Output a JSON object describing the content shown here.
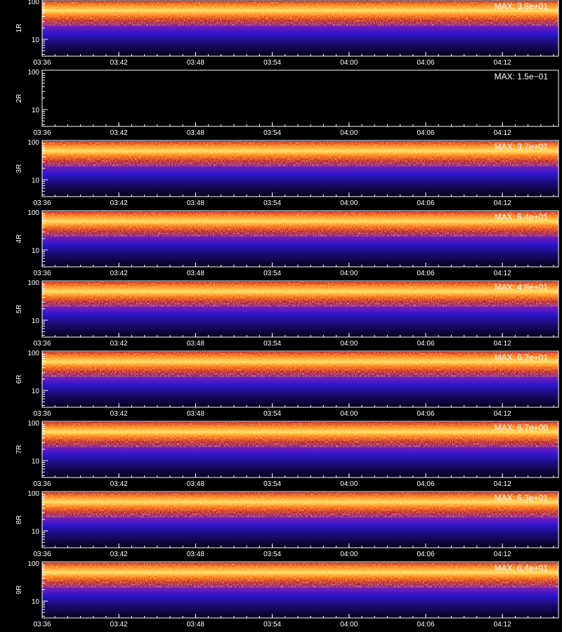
{
  "chart_data": {
    "type": "heatmap",
    "x_tick_labels": [
      "03:36",
      "03:42",
      "03:48",
      "03:54",
      "04:00",
      "04:06",
      "04:12"
    ],
    "y_tick_labels": [
      "100",
      "10"
    ],
    "y_scale": "log",
    "xlabel": "",
    "panels": [
      {
        "label": "1R",
        "max_label": "MAX: 3.8e+01",
        "empty": false,
        "colors": [
          "#1a0a6a",
          "#2a16c8",
          "#6a1cc0",
          "#c0202a",
          "#ff7a10",
          "#ffe060"
        ]
      },
      {
        "label": "2R",
        "max_label": "MAX: 1.5e−01",
        "empty": true,
        "colors": []
      },
      {
        "label": "3R",
        "max_label": "MAX: 3.7e+01",
        "empty": false,
        "colors": [
          "#1a0a6a",
          "#2a16c8",
          "#6a1cc0",
          "#c0202a",
          "#ff7a10",
          "#ffe060"
        ]
      },
      {
        "label": "4R",
        "max_label": "MAX: 6.4e+01",
        "empty": false,
        "colors": [
          "#1a0a6a",
          "#2a16c8",
          "#6a1cc0",
          "#c0202a",
          "#ff7a10",
          "#ffe060"
        ]
      },
      {
        "label": "5R",
        "max_label": "MAX: 4.8e+01",
        "empty": false,
        "colors": [
          "#1a0a6a",
          "#2a16c8",
          "#6a1cc0",
          "#c0202a",
          "#ff7a10",
          "#ffe060"
        ]
      },
      {
        "label": "6R",
        "max_label": "MAX: 6.2e+01",
        "empty": false,
        "colors": [
          "#1a0a6a",
          "#2a16c8",
          "#6a1cc0",
          "#c0202a",
          "#ff7a10",
          "#ffe060"
        ]
      },
      {
        "label": "7R",
        "max_label": "MAX: 5.7e+00",
        "empty": false,
        "colors": [
          "#1a0a6a",
          "#2a16c8",
          "#6a1cc0",
          "#c0202a",
          "#ff7a10",
          "#ffe060"
        ]
      },
      {
        "label": "8R",
        "max_label": "MAX: 6.3e+01",
        "empty": false,
        "colors": [
          "#1a0a6a",
          "#2a16c8",
          "#6a1cc0",
          "#c0202a",
          "#ff7a10",
          "#ffe060"
        ]
      },
      {
        "label": "9R",
        "max_label": "MAX: 6.4e+01",
        "empty": false,
        "colors": [
          "#1a0a6a",
          "#2a16c8",
          "#6a1cc0",
          "#c0202a",
          "#ff7a10",
          "#ffe060"
        ]
      }
    ]
  }
}
